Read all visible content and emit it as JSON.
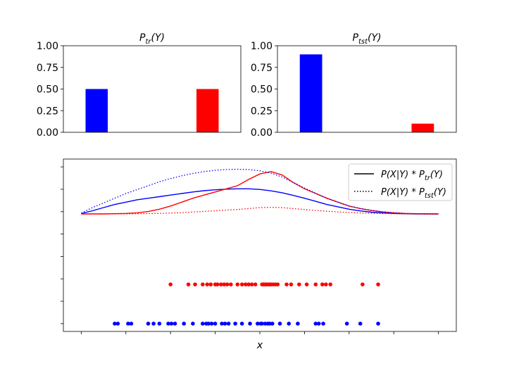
{
  "chart_data": [
    {
      "type": "bar",
      "title_parts": [
        "P",
        "tr",
        "(Y)"
      ],
      "categories": [
        "",
        ""
      ],
      "values": [
        0.5,
        0.5
      ],
      "colors": [
        "#0000ff",
        "#ff0000"
      ],
      "ylim": [
        0,
        1
      ],
      "yticks": [
        "0.00",
        "0.25",
        "0.50",
        "0.75",
        "1.00"
      ],
      "grid": false
    },
    {
      "type": "bar",
      "title_parts": [
        "P",
        "tst",
        "(Y)"
      ],
      "categories": [
        "",
        ""
      ],
      "values": [
        0.9,
        0.1
      ],
      "colors": [
        "#0000ff",
        "#ff0000"
      ],
      "ylim": [
        0,
        1
      ],
      "yticks": [
        "0.00",
        "0.25",
        "0.50",
        "0.75",
        "1.00"
      ],
      "grid": false
    },
    {
      "type": "line",
      "xlabel": "x",
      "xlim": [
        -0.4,
        8.4
      ],
      "ylim": [
        -0.05,
        1.05
      ],
      "x": [
        0,
        0.25,
        0.5,
        0.75,
        1,
        1.25,
        1.5,
        1.75,
        2,
        2.25,
        2.5,
        2.75,
        3,
        3.25,
        3.5,
        3.75,
        4,
        4.25,
        4.5,
        4.75,
        5,
        5.25,
        5.5,
        5.75,
        6,
        6.25,
        6.5,
        6.75,
        7,
        7.25,
        7.5,
        7.75,
        8
      ],
      "series": [
        {
          "color": "#0000ff",
          "style": "solid",
          "values": [
            0.702,
            0.72,
            0.74,
            0.76,
            0.775,
            0.79,
            0.8,
            0.81,
            0.82,
            0.83,
            0.84,
            0.848,
            0.854,
            0.858,
            0.86,
            0.86,
            0.856,
            0.847,
            0.835,
            0.818,
            0.8,
            0.78,
            0.76,
            0.745,
            0.73,
            0.719,
            0.711,
            0.706,
            0.703,
            0.701,
            0.7,
            0.7,
            0.7
          ]
        },
        {
          "color": "#ff0000",
          "style": "solid",
          "values": [
            0.7,
            0.7,
            0.7,
            0.701,
            0.703,
            0.707,
            0.715,
            0.73,
            0.75,
            0.775,
            0.8,
            0.82,
            0.84,
            0.86,
            0.88,
            0.92,
            0.955,
            0.97,
            0.948,
            0.9,
            0.86,
            0.83,
            0.8,
            0.775,
            0.75,
            0.734,
            0.722,
            0.713,
            0.707,
            0.703,
            0.701,
            0.7,
            0.7
          ]
        },
        {
          "color": "#0000ff",
          "style": "dotted",
          "values": [
            0.705,
            0.74,
            0.77,
            0.8,
            0.83,
            0.855,
            0.88,
            0.905,
            0.925,
            0.943,
            0.958,
            0.97,
            0.978,
            0.983,
            0.985,
            0.983,
            0.975,
            0.96,
            0.935,
            0.9,
            0.865,
            0.832,
            0.8,
            0.775,
            0.75,
            0.735,
            0.722,
            0.713,
            0.707,
            0.703,
            0.701,
            0.7,
            0.7
          ]
        },
        {
          "color": "#ff0000",
          "style": "dotted",
          "values": [
            0.7,
            0.7,
            0.7,
            0.7,
            0.7,
            0.701,
            0.702,
            0.703,
            0.705,
            0.708,
            0.712,
            0.716,
            0.72,
            0.724,
            0.728,
            0.734,
            0.74,
            0.742,
            0.74,
            0.734,
            0.728,
            0.722,
            0.717,
            0.713,
            0.709,
            0.706,
            0.704,
            0.702,
            0.701,
            0.7,
            0.7,
            0.7,
            0.7
          ]
        }
      ],
      "scatter": [
        {
          "color": "#ff0000",
          "y": 0.25,
          "x": [
            2.0,
            2.4,
            2.55,
            2.72,
            2.82,
            2.9,
            3.0,
            3.05,
            3.13,
            3.2,
            3.27,
            3.35,
            3.5,
            3.6,
            3.68,
            3.75,
            3.82,
            3.9,
            4.05,
            4.08,
            4.12,
            4.15,
            4.18,
            4.22,
            4.25,
            4.3,
            4.35,
            4.4,
            4.6,
            4.7,
            4.88,
            5.05,
            5.25,
            5.4,
            5.48,
            5.58,
            6.3,
            6.65
          ]
        },
        {
          "color": "#0000ff",
          "y": 0.0,
          "x": [
            0.75,
            0.82,
            1.05,
            1.12,
            1.5,
            1.62,
            1.75,
            1.95,
            2.02,
            2.1,
            2.3,
            2.5,
            2.72,
            2.8,
            2.85,
            2.92,
            3.0,
            3.15,
            3.22,
            3.3,
            3.45,
            3.6,
            3.78,
            3.95,
            4.02,
            4.05,
            4.12,
            4.18,
            4.22,
            4.28,
            4.45,
            4.65,
            4.85,
            5.25,
            5.32,
            5.42,
            5.95,
            6.25,
            6.65
          ]
        }
      ],
      "legend": {
        "placement": "upper right",
        "entries": [
          {
            "style": "solid",
            "parts": [
              "P(X|Y) * P",
              "tr",
              "(Y)"
            ]
          },
          {
            "style": "dotted",
            "parts": [
              "P(X|Y) * P",
              "tst",
              "(Y)"
            ]
          }
        ]
      },
      "grid": false
    }
  ]
}
